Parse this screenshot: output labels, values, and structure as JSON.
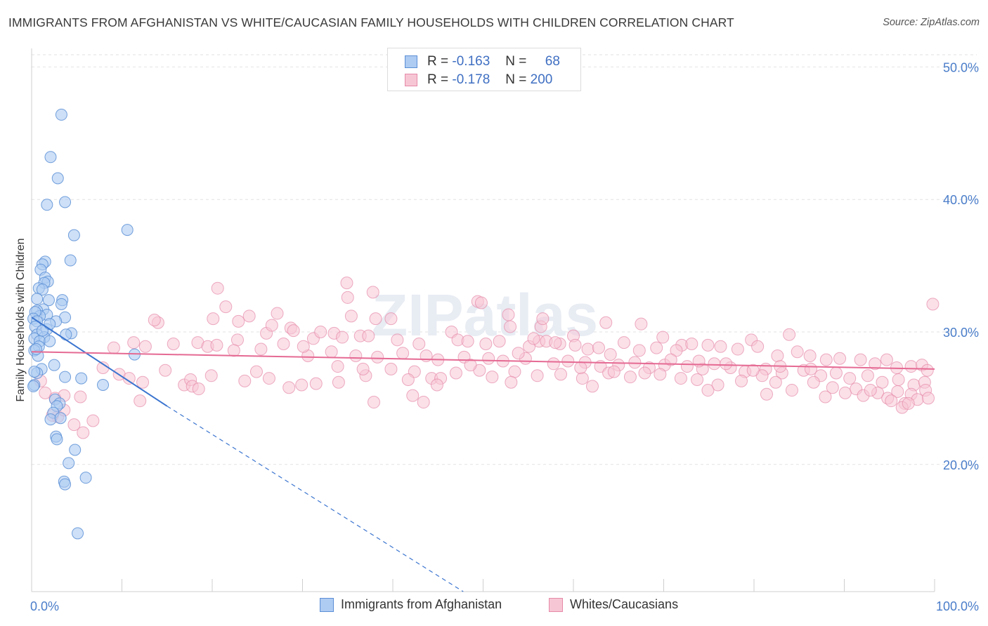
{
  "title": "IMMIGRANTS FROM AFGHANISTAN VS WHITE/CAUCASIAN FAMILY HOUSEHOLDS WITH CHILDREN CORRELATION CHART",
  "source": "Source: ZipAtlas.com",
  "watermark": "ZIPatlas",
  "legend_top": {
    "rows": [
      {
        "r_label": "R =",
        "r_value": "-0.163",
        "n_label": "N =",
        "n_value": "68"
      },
      {
        "r_label": "R =",
        "r_value": "-0.178",
        "n_label": "N =",
        "n_value": "200"
      }
    ]
  },
  "legend_bottom": [
    {
      "label": "Immigrants from Afghanistan"
    },
    {
      "label": "Whites/Caucasians"
    }
  ],
  "colors": {
    "blue_fill": "#aecbf2",
    "blue_stroke": "#5b8fd6",
    "blue_line": "#3a74cf",
    "pink_fill": "#f7c6d5",
    "pink_stroke": "#e68aa8",
    "pink_line": "#e56a93",
    "tick_text": "#4a7dc9",
    "grid": "#e2e2e2"
  },
  "chart_data": {
    "type": "scatter",
    "title": "IMMIGRANTS FROM AFGHANISTAN VS WHITE/CAUCASIAN FAMILY HOUSEHOLDS WITH CHILDREN CORRELATION CHART",
    "xlabel": "",
    "ylabel": "Family Households with Children",
    "xlim": [
      0,
      100
    ],
    "ylim": [
      10.4,
      51.4
    ],
    "x_tick_labels": [
      "0.0%",
      "100.0%"
    ],
    "y_ticks": [
      20,
      30,
      40,
      50
    ],
    "y_tick_labels": [
      "20.0%",
      "30.0%",
      "40.0%",
      "50.0%"
    ],
    "grid": true,
    "legend_position": "top-center",
    "series": [
      {
        "name": "Immigrants from Afghanistan",
        "R": -0.163,
        "N": 68,
        "trend": {
          "x": [
            0.0,
            15.0
          ],
          "y": [
            31.1,
            24.4
          ],
          "dashed_extension_to": [
            47.8,
            10.4
          ]
        },
        "points": [
          [
            3.3,
            46.4
          ],
          [
            2.1,
            43.2
          ],
          [
            2.9,
            41.6
          ],
          [
            1.7,
            39.6
          ],
          [
            3.7,
            39.8
          ],
          [
            10.6,
            37.7
          ],
          [
            4.7,
            37.3
          ],
          [
            4.3,
            35.4
          ],
          [
            1.5,
            35.3
          ],
          [
            1.2,
            35.1
          ],
          [
            1.0,
            34.7
          ],
          [
            1.5,
            34.1
          ],
          [
            1.8,
            33.8
          ],
          [
            1.4,
            33.7
          ],
          [
            0.8,
            33.3
          ],
          [
            1.2,
            33.2
          ],
          [
            0.6,
            32.5
          ],
          [
            1.9,
            32.4
          ],
          [
            3.4,
            32.4
          ],
          [
            3.3,
            32.1
          ],
          [
            1.3,
            31.7
          ],
          [
            0.6,
            31.6
          ],
          [
            1.7,
            31.3
          ],
          [
            0.9,
            31.2
          ],
          [
            0.4,
            31.5
          ],
          [
            0.2,
            31.0
          ],
          [
            3.7,
            31.1
          ],
          [
            0.6,
            30.8
          ],
          [
            2.7,
            30.8
          ],
          [
            0.4,
            30.4
          ],
          [
            1.7,
            30.2
          ],
          [
            4.4,
            29.9
          ],
          [
            3.8,
            29.8
          ],
          [
            0.6,
            29.8
          ],
          [
            0.3,
            29.5
          ],
          [
            1.4,
            29.6
          ],
          [
            0.9,
            29.3
          ],
          [
            2.0,
            29.3
          ],
          [
            0.8,
            28.9
          ],
          [
            0.3,
            28.6
          ],
          [
            0.7,
            28.2
          ],
          [
            11.4,
            28.3
          ],
          [
            2.5,
            27.5
          ],
          [
            1.1,
            27.2
          ],
          [
            0.6,
            26.9
          ],
          [
            3.7,
            26.6
          ],
          [
            5.5,
            26.5
          ],
          [
            7.9,
            26.0
          ],
          [
            0.3,
            26.0
          ],
          [
            2.6,
            24.9
          ],
          [
            3.1,
            24.6
          ],
          [
            2.8,
            24.4
          ],
          [
            2.4,
            23.9
          ],
          [
            2.1,
            23.4
          ],
          [
            3.2,
            23.5
          ],
          [
            2.7,
            22.1
          ],
          [
            2.8,
            21.9
          ],
          [
            4.8,
            21.1
          ],
          [
            4.1,
            20.1
          ],
          [
            3.6,
            18.7
          ],
          [
            3.7,
            18.5
          ],
          [
            6.0,
            19.0
          ],
          [
            5.1,
            14.8
          ],
          [
            0.3,
            27.0
          ],
          [
            0.5,
            28.7
          ],
          [
            1.2,
            30.1
          ],
          [
            2.0,
            30.6
          ],
          [
            0.2,
            25.9
          ]
        ]
      },
      {
        "name": "Whites/Caucasians",
        "R": -0.178,
        "N": 200,
        "trend": {
          "x": [
            0.0,
            100.0
          ],
          "y": [
            28.5,
            27.2
          ]
        },
        "points": [
          [
            34.9,
            33.7
          ],
          [
            35.0,
            32.6
          ],
          [
            37.8,
            33.0
          ],
          [
            49.4,
            32.3
          ],
          [
            49.8,
            32.2
          ],
          [
            20.6,
            33.3
          ],
          [
            21.5,
            31.9
          ],
          [
            27.2,
            31.4
          ],
          [
            35.4,
            31.2
          ],
          [
            38.1,
            31.0
          ],
          [
            39.8,
            31.0
          ],
          [
            52.8,
            31.3
          ],
          [
            53.0,
            30.4
          ],
          [
            56.4,
            30.4
          ],
          [
            56.6,
            31.0
          ],
          [
            60.0,
            29.7
          ],
          [
            63.6,
            30.7
          ],
          [
            67.5,
            30.6
          ],
          [
            69.9,
            29.6
          ],
          [
            72.0,
            29.0
          ],
          [
            79.7,
            29.4
          ],
          [
            83.9,
            29.8
          ],
          [
            14.0,
            30.7
          ],
          [
            13.6,
            30.9
          ],
          [
            20.1,
            31.0
          ],
          [
            22.9,
            30.8
          ],
          [
            24.1,
            31.2
          ],
          [
            26.0,
            29.9
          ],
          [
            26.6,
            30.5
          ],
          [
            28.7,
            30.3
          ],
          [
            29.0,
            30.1
          ],
          [
            31.2,
            29.5
          ],
          [
            32.0,
            30.0
          ],
          [
            33.5,
            29.9
          ],
          [
            34.4,
            29.6
          ],
          [
            36.4,
            29.7
          ],
          [
            37.3,
            29.7
          ],
          [
            40.5,
            29.4
          ],
          [
            42.9,
            29.1
          ],
          [
            46.5,
            30.0
          ],
          [
            47.2,
            29.4
          ],
          [
            48.3,
            29.3
          ],
          [
            50.3,
            29.1
          ],
          [
            51.8,
            29.3
          ],
          [
            55.1,
            28.9
          ],
          [
            56.2,
            29.3
          ],
          [
            57.0,
            29.3
          ],
          [
            58.5,
            29.1
          ],
          [
            60.2,
            29.0
          ],
          [
            61.6,
            28.7
          ],
          [
            62.8,
            28.8
          ],
          [
            64.1,
            28.3
          ],
          [
            65.6,
            29.2
          ],
          [
            67.3,
            28.6
          ],
          [
            69.2,
            28.8
          ],
          [
            71.4,
            28.6
          ],
          [
            73.1,
            29.1
          ],
          [
            74.9,
            29.0
          ],
          [
            76.3,
            28.9
          ],
          [
            78.2,
            28.7
          ],
          [
            80.4,
            28.9
          ],
          [
            82.6,
            28.2
          ],
          [
            84.8,
            28.5
          ],
          [
            86.2,
            28.2
          ],
          [
            88.0,
            27.9
          ],
          [
            89.5,
            28.0
          ],
          [
            91.8,
            27.9
          ],
          [
            93.4,
            27.6
          ],
          [
            94.7,
            27.9
          ],
          [
            95.8,
            27.3
          ],
          [
            97.4,
            27.4
          ],
          [
            98.6,
            27.5
          ],
          [
            99.2,
            27.1
          ],
          [
            99.8,
            32.1
          ],
          [
            9.1,
            28.8
          ],
          [
            11.3,
            29.2
          ],
          [
            12.6,
            28.9
          ],
          [
            15.7,
            29.1
          ],
          [
            18.4,
            29.2
          ],
          [
            19.5,
            28.9
          ],
          [
            22.8,
            29.4
          ],
          [
            25.4,
            28.7
          ],
          [
            27.9,
            29.1
          ],
          [
            30.6,
            28.2
          ],
          [
            33.2,
            28.5
          ],
          [
            35.9,
            28.2
          ],
          [
            38.3,
            28.1
          ],
          [
            41.1,
            28.4
          ],
          [
            43.7,
            28.2
          ],
          [
            45.0,
            27.9
          ],
          [
            47.9,
            28.1
          ],
          [
            50.6,
            28.0
          ],
          [
            52.2,
            27.8
          ],
          [
            54.7,
            28.0
          ],
          [
            57.8,
            27.6
          ],
          [
            59.4,
            27.8
          ],
          [
            61.3,
            27.7
          ],
          [
            63.0,
            27.4
          ],
          [
            65.0,
            27.5
          ],
          [
            66.8,
            27.7
          ],
          [
            68.4,
            27.3
          ],
          [
            70.1,
            27.5
          ],
          [
            72.6,
            27.4
          ],
          [
            74.3,
            27.2
          ],
          [
            75.6,
            27.6
          ],
          [
            77.4,
            27.3
          ],
          [
            79.0,
            27.0
          ],
          [
            81.3,
            27.2
          ],
          [
            83.1,
            26.9
          ],
          [
            85.5,
            27.1
          ],
          [
            87.4,
            26.7
          ],
          [
            89.1,
            26.9
          ],
          [
            90.6,
            26.5
          ],
          [
            92.6,
            26.7
          ],
          [
            94.2,
            26.2
          ],
          [
            96.0,
            26.4
          ],
          [
            97.7,
            26.0
          ],
          [
            98.9,
            26.2
          ],
          [
            7.9,
            27.3
          ],
          [
            9.7,
            26.8
          ],
          [
            10.8,
            26.5
          ],
          [
            12.3,
            26.2
          ],
          [
            14.8,
            27.1
          ],
          [
            16.9,
            26.0
          ],
          [
            17.6,
            26.4
          ],
          [
            19.9,
            26.7
          ],
          [
            23.6,
            26.3
          ],
          [
            26.3,
            26.5
          ],
          [
            28.5,
            25.8
          ],
          [
            31.5,
            26.1
          ],
          [
            34.0,
            26.2
          ],
          [
            37.0,
            26.7
          ],
          [
            39.8,
            27.2
          ],
          [
            42.4,
            27.0
          ],
          [
            44.3,
            26.5
          ],
          [
            47.0,
            26.9
          ],
          [
            49.6,
            27.1
          ],
          [
            51.0,
            26.6
          ],
          [
            53.5,
            27.0
          ],
          [
            56.0,
            26.7
          ],
          [
            58.6,
            26.8
          ],
          [
            61.0,
            26.5
          ],
          [
            63.9,
            26.9
          ],
          [
            66.3,
            26.6
          ],
          [
            69.6,
            26.8
          ],
          [
            71.9,
            26.5
          ],
          [
            73.7,
            26.4
          ],
          [
            76.0,
            26.0
          ],
          [
            78.6,
            26.3
          ],
          [
            80.9,
            26.7
          ],
          [
            82.4,
            26.2
          ],
          [
            84.2,
            25.6
          ],
          [
            86.6,
            26.2
          ],
          [
            88.7,
            25.8
          ],
          [
            90.1,
            25.4
          ],
          [
            91.3,
            25.7
          ],
          [
            92.1,
            25.2
          ],
          [
            93.7,
            25.4
          ],
          [
            94.8,
            25.0
          ],
          [
            95.9,
            25.5
          ],
          [
            96.7,
            24.6
          ],
          [
            97.4,
            25.3
          ],
          [
            98.1,
            24.9
          ],
          [
            99.0,
            25.6
          ],
          [
            1.0,
            26.3
          ],
          [
            1.5,
            25.4
          ],
          [
            2.6,
            25.0
          ],
          [
            3.6,
            25.2
          ],
          [
            5.4,
            25.1
          ],
          [
            2.9,
            23.6
          ],
          [
            3.6,
            24.1
          ],
          [
            4.7,
            23.0
          ],
          [
            5.7,
            22.4
          ],
          [
            6.8,
            23.3
          ],
          [
            2.3,
            23.7
          ],
          [
            12.0,
            24.8
          ],
          [
            17.8,
            25.9
          ],
          [
            18.5,
            25.7
          ],
          [
            29.9,
            26.0
          ],
          [
            37.9,
            24.7
          ],
          [
            42.2,
            25.2
          ],
          [
            43.4,
            24.7
          ],
          [
            45.3,
            26.5
          ],
          [
            53.1,
            26.2
          ],
          [
            62.1,
            25.9
          ],
          [
            74.9,
            25.6
          ],
          [
            81.4,
            25.3
          ],
          [
            87.9,
            25.1
          ],
          [
            92.9,
            25.6
          ],
          [
            95.2,
            24.8
          ],
          [
            96.4,
            24.3
          ],
          [
            97.1,
            24.6
          ],
          [
            99.3,
            25.0
          ],
          [
            20.5,
            29.0
          ],
          [
            22.4,
            28.6
          ],
          [
            24.9,
            27.0
          ],
          [
            30.1,
            28.9
          ],
          [
            33.9,
            27.4
          ],
          [
            36.7,
            27.2
          ],
          [
            41.7,
            26.4
          ],
          [
            44.9,
            26.0
          ],
          [
            48.6,
            27.5
          ],
          [
            53.9,
            28.4
          ],
          [
            55.6,
            29.5
          ],
          [
            58.0,
            29.2
          ],
          [
            60.8,
            27.3
          ],
          [
            64.5,
            27.0
          ],
          [
            67.9,
            26.9
          ],
          [
            70.8,
            27.9
          ],
          [
            73.9,
            27.8
          ],
          [
            76.9,
            27.6
          ],
          [
            79.9,
            27.1
          ],
          [
            82.9,
            27.4
          ],
          [
            86.3,
            27.2
          ]
        ]
      }
    ]
  }
}
